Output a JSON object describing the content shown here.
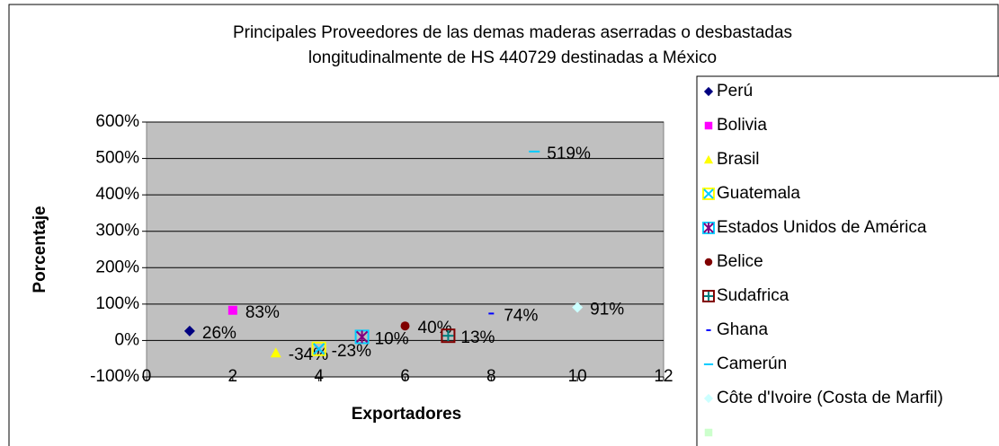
{
  "chart_data": {
    "type": "scatter",
    "title": [
      "Principales Proveedores de las demas maderas aserradas o desbastadas",
      "longitudinalmente de HS 440729 destinadas a México"
    ],
    "x_label": "Exportadores",
    "y_label": "Porcentaje",
    "xlim": [
      0,
      12
    ],
    "xticks": [
      0,
      2,
      4,
      6,
      8,
      10,
      12
    ],
    "ylim": [
      -100,
      600
    ],
    "yticks": [
      {
        "value": -100,
        "label": "-100%"
      },
      {
        "value": 0,
        "label": "0%"
      },
      {
        "value": 100,
        "label": "100%"
      },
      {
        "value": 200,
        "label": "200%"
      },
      {
        "value": 300,
        "label": "300%"
      },
      {
        "value": 400,
        "label": "400%"
      },
      {
        "value": 500,
        "label": "500%"
      },
      {
        "value": 600,
        "label": "600%"
      }
    ],
    "grid": true,
    "legend": "right",
    "series": [
      {
        "name": "Perú",
        "color": "#000080",
        "marker": "diamond",
        "x": [
          1
        ],
        "values": [
          26
        ],
        "value_labels": [
          "26%"
        ]
      },
      {
        "name": "Bolivia",
        "color": "#ff00ff",
        "marker": "square",
        "x": [
          2
        ],
        "values": [
          83
        ],
        "value_labels": [
          "83%"
        ]
      },
      {
        "name": "Brasil",
        "color": "#ffff00",
        "marker": "triangle",
        "x": [
          3
        ],
        "values": [
          -34
        ],
        "value_labels": [
          "-34%"
        ]
      },
      {
        "name": "Guatemala",
        "color": "#ffff00",
        "color2": "#00ccff",
        "marker": "xbox",
        "x": [
          4
        ],
        "values": [
          -23
        ],
        "value_labels": [
          "-23%"
        ]
      },
      {
        "name": "Estados Unidos de América",
        "color": "#00ccff",
        "color2": "#800080",
        "marker": "starbox",
        "x": [
          5
        ],
        "values": [
          10
        ],
        "value_labels": [
          "10%"
        ]
      },
      {
        "name": "Belice",
        "color": "#800000",
        "marker": "circle",
        "x": [
          6
        ],
        "values": [
          40
        ],
        "value_labels": [
          "40%"
        ]
      },
      {
        "name": "Sudafrica",
        "color": "#800000",
        "color2": "#008080",
        "marker": "plusbox",
        "x": [
          7
        ],
        "values": [
          13
        ],
        "value_labels": [
          "13%"
        ]
      },
      {
        "name": "Ghana",
        "color": "#0000ff",
        "marker": "dash",
        "x": [
          8
        ],
        "values": [
          74
        ],
        "value_labels": [
          "74%"
        ]
      },
      {
        "name": "Camerún",
        "color": "#00ccff",
        "marker": "longdash",
        "x": [
          9
        ],
        "values": [
          519
        ],
        "value_labels": [
          "519%"
        ]
      },
      {
        "name": "Côte d'Ivoire (Costa de Marfil)",
        "color": "#ccffff",
        "marker": "diamond",
        "x": [
          10
        ],
        "values": [
          91
        ],
        "value_labels": [
          "91%"
        ]
      },
      {
        "name": null,
        "color": "#ccffcc",
        "marker": "square",
        "x": [],
        "values": [],
        "value_labels": []
      }
    ]
  }
}
